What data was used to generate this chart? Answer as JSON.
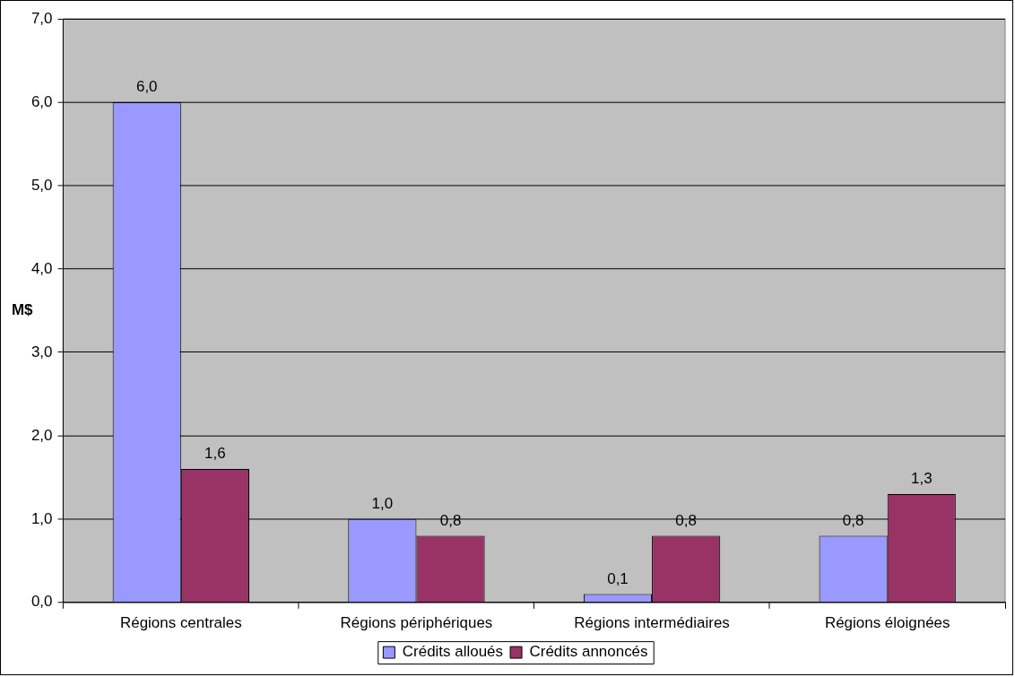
{
  "chart_data": {
    "type": "bar",
    "ylabel": "M$",
    "categories": [
      "Régions centrales",
      "Régions périphériques",
      "Régions intermédiaires",
      "Régions éloignées"
    ],
    "series": [
      {
        "name": "Crédits alloués",
        "color": "#9999ff",
        "values": [
          6.0,
          1.0,
          0.1,
          0.8
        ],
        "value_labels": [
          "6,0",
          "1,0",
          "0,1",
          "0,8"
        ]
      },
      {
        "name": "Crédits annoncés",
        "color": "#993366",
        "values": [
          1.6,
          0.8,
          0.8,
          1.3
        ],
        "value_labels": [
          "1,6",
          "0,8",
          "0,8",
          "1,3"
        ]
      }
    ],
    "ylim": [
      0,
      7
    ],
    "yticks": [
      {
        "value": 0,
        "label": "0,0"
      },
      {
        "value": 1,
        "label": "1,0"
      },
      {
        "value": 2,
        "label": "2,0"
      },
      {
        "value": 3,
        "label": "3,0"
      },
      {
        "value": 4,
        "label": "4,0"
      },
      {
        "value": 5,
        "label": "5,0"
      },
      {
        "value": 6,
        "label": "6,0"
      },
      {
        "value": 7,
        "label": "7,0"
      }
    ],
    "grid": "y",
    "legend": "bottom"
  }
}
